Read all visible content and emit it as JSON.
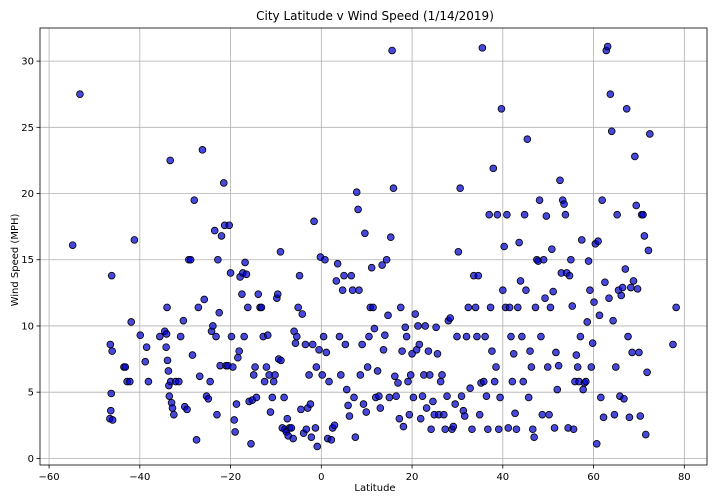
{
  "chart_data": {
    "type": "scatter",
    "title": "City Latitude v Wind Speed (1/14/2019)",
    "xlabel": "Latitude",
    "ylabel": "Wind Speed (MPH)",
    "xlim": [
      -62,
      85
    ],
    "ylim": [
      -0.5,
      32.5
    ],
    "xticks": [
      -60,
      -40,
      -20,
      0,
      20,
      40,
      60,
      80
    ],
    "yticks": [
      0,
      5,
      10,
      15,
      20,
      25,
      30
    ],
    "grid": true,
    "marker_color": "#0000cc",
    "marker_edge": "#000000",
    "points": [
      [
        -54.8,
        16.1
      ],
      [
        -53.2,
        27.5
      ],
      [
        -46.2,
        13.8
      ],
      [
        -46.5,
        8.6
      ],
      [
        -46.1,
        8.1
      ],
      [
        -46.3,
        4.9
      ],
      [
        -46.4,
        3.6
      ],
      [
        -46.6,
        3.0
      ],
      [
        -46.0,
        2.9
      ],
      [
        -43.5,
        6.9
      ],
      [
        -43.2,
        6.9
      ],
      [
        -42.8,
        5.8
      ],
      [
        -42.2,
        5.8
      ],
      [
        -41.9,
        10.3
      ],
      [
        -41.2,
        16.5
      ],
      [
        -39.9,
        9.3
      ],
      [
        -38.8,
        7.3
      ],
      [
        -38.5,
        8.4
      ],
      [
        -38.1,
        5.8
      ],
      [
        -35.6,
        9.2
      ],
      [
        -34.5,
        9.6
      ],
      [
        -34.1,
        9.4
      ],
      [
        -34.0,
        11.4
      ],
      [
        -34.2,
        8.4
      ],
      [
        -33.9,
        7.4
      ],
      [
        -33.7,
        6.6
      ],
      [
        -33.5,
        4.7
      ],
      [
        -33.6,
        5.5
      ],
      [
        -33.2,
        5.8
      ],
      [
        -33.0,
        4.2
      ],
      [
        -32.8,
        3.8
      ],
      [
        -32.5,
        3.3
      ],
      [
        -33.3,
        22.5
      ],
      [
        -32.1,
        5.8
      ],
      [
        -31.4,
        5.8
      ],
      [
        -31.0,
        9.2
      ],
      [
        -30.4,
        10.4
      ],
      [
        -30.1,
        3.9
      ],
      [
        -29.6,
        3.7
      ],
      [
        -29.2,
        15.0
      ],
      [
        -28.8,
        15.0
      ],
      [
        -28.4,
        7.8
      ],
      [
        -28.0,
        19.5
      ],
      [
        -27.5,
        1.4
      ],
      [
        -27.1,
        11.4
      ],
      [
        -26.8,
        6.2
      ],
      [
        -26.2,
        23.3
      ],
      [
        -25.8,
        12.0
      ],
      [
        -25.3,
        4.7
      ],
      [
        -24.9,
        4.5
      ],
      [
        -24.5,
        5.8
      ],
      [
        -24.2,
        9.6
      ],
      [
        -23.9,
        10.0
      ],
      [
        -23.5,
        17.2
      ],
      [
        -23.2,
        9.2
      ],
      [
        -23.0,
        3.3
      ],
      [
        -22.8,
        15.0
      ],
      [
        -22.5,
        11.0
      ],
      [
        -22.3,
        7.0
      ],
      [
        -22.0,
        16.8
      ],
      [
        -21.5,
        20.8
      ],
      [
        -21.3,
        17.6
      ],
      [
        -21.0,
        7.0
      ],
      [
        -20.6,
        7.0
      ],
      [
        -20.3,
        17.6
      ],
      [
        -20.0,
        14.0
      ],
      [
        -19.8,
        9.2
      ],
      [
        -19.5,
        6.9
      ],
      [
        -19.2,
        2.9
      ],
      [
        -19.0,
        2.0
      ],
      [
        -18.7,
        4.1
      ],
      [
        -18.4,
        7.6
      ],
      [
        -18.1,
        8.1
      ],
      [
        -17.9,
        13.7
      ],
      [
        -17.5,
        12.4
      ],
      [
        -17.3,
        14.0
      ],
      [
        -17.0,
        9.2
      ],
      [
        -16.8,
        14.8
      ],
      [
        -16.5,
        13.9
      ],
      [
        -16.2,
        11.4
      ],
      [
        -15.9,
        4.3
      ],
      [
        -15.5,
        1.1
      ],
      [
        -15.2,
        4.4
      ],
      [
        -14.9,
        6.3
      ],
      [
        -14.6,
        6.9
      ],
      [
        -14.3,
        4.6
      ],
      [
        -13.9,
        12.4
      ],
      [
        -13.5,
        11.4
      ],
      [
        -13.2,
        11.4
      ],
      [
        -12.8,
        9.2
      ],
      [
        -12.5,
        5.8
      ],
      [
        -12.1,
        6.9
      ],
      [
        -11.8,
        9.3
      ],
      [
        -11.5,
        6.3
      ],
      [
        -11.2,
        3.5
      ],
      [
        -10.8,
        4.6
      ],
      [
        -10.5,
        5.8
      ],
      [
        -10.2,
        6.3
      ],
      [
        -9.8,
        12.1
      ],
      [
        -9.6,
        12.4
      ],
      [
        -9.4,
        7.5
      ],
      [
        -9.0,
        15.6
      ],
      [
        -8.9,
        7.4
      ],
      [
        -8.6,
        2.3
      ],
      [
        -8.2,
        4.6
      ],
      [
        -8.0,
        2.2
      ],
      [
        -7.7,
        2.0
      ],
      [
        -7.5,
        3.0
      ],
      [
        -7.3,
        1.7
      ],
      [
        -7.0,
        2.3
      ],
      [
        -6.6,
        2.3
      ],
      [
        -6.2,
        1.5
      ],
      [
        -6.0,
        9.6
      ],
      [
        -5.7,
        8.7
      ],
      [
        -5.4,
        9.2
      ],
      [
        -5.1,
        11.4
      ],
      [
        -4.8,
        13.8
      ],
      [
        -4.5,
        3.7
      ],
      [
        -4.2,
        10.9
      ],
      [
        -3.9,
        1.9
      ],
      [
        -3.5,
        8.6
      ],
      [
        -3.3,
        2.2
      ],
      [
        -3.0,
        3.8
      ],
      [
        -2.7,
        6.3
      ],
      [
        -2.4,
        4.1
      ],
      [
        -2.2,
        1.6
      ],
      [
        -1.9,
        8.6
      ],
      [
        -1.6,
        17.9
      ],
      [
        -1.3,
        2.3
      ],
      [
        -1.1,
        6.9
      ],
      [
        -0.9,
        0.9
      ],
      [
        -0.5,
        8.2
      ],
      [
        -0.2,
        15.2
      ],
      [
        0.2,
        6.3
      ],
      [
        0.5,
        9.2
      ],
      [
        0.8,
        15.0
      ],
      [
        1.1,
        8.0
      ],
      [
        1.4,
        1.5
      ],
      [
        1.7,
        5.8
      ],
      [
        2.2,
        1.4
      ],
      [
        2.5,
        2.3
      ],
      [
        2.9,
        2.5
      ],
      [
        3.3,
        13.4
      ],
      [
        3.6,
        14.7
      ],
      [
        4.0,
        9.2
      ],
      [
        4.3,
        6.3
      ],
      [
        4.7,
        12.7
      ],
      [
        5.0,
        13.8
      ],
      [
        5.3,
        8.6
      ],
      [
        5.6,
        5.2
      ],
      [
        5.9,
        4.0
      ],
      [
        6.2,
        3.2
      ],
      [
        6.6,
        13.8
      ],
      [
        6.9,
        12.7
      ],
      [
        7.2,
        4.6
      ],
      [
        7.5,
        1.6
      ],
      [
        7.8,
        20.1
      ],
      [
        8.1,
        18.8
      ],
      [
        8.3,
        12.7
      ],
      [
        8.6,
        6.3
      ],
      [
        9.0,
        8.6
      ],
      [
        9.3,
        4.1
      ],
      [
        9.6,
        17.0
      ],
      [
        9.9,
        3.5
      ],
      [
        10.2,
        6.9
      ],
      [
        10.5,
        9.2
      ],
      [
        10.8,
        11.4
      ],
      [
        11.1,
        14.4
      ],
      [
        11.4,
        11.4
      ],
      [
        11.7,
        9.8
      ],
      [
        12.0,
        4.6
      ],
      [
        12.4,
        6.6
      ],
      [
        12.7,
        4.7
      ],
      [
        13.0,
        3.8
      ],
      [
        13.4,
        14.6
      ],
      [
        13.7,
        8.2
      ],
      [
        14.0,
        9.3
      ],
      [
        14.4,
        15.0
      ],
      [
        14.7,
        10.8
      ],
      [
        15.0,
        4.6
      ],
      [
        15.3,
        16.7
      ],
      [
        15.6,
        30.8
      ],
      [
        15.9,
        20.4
      ],
      [
        16.2,
        6.2
      ],
      [
        16.5,
        4.7
      ],
      [
        16.9,
        5.7
      ],
      [
        17.2,
        3.0
      ],
      [
        17.5,
        11.4
      ],
      [
        17.8,
        8.1
      ],
      [
        18.1,
        2.4
      ],
      [
        18.5,
        9.9
      ],
      [
        18.8,
        9.2
      ],
      [
        19.1,
        5.8
      ],
      [
        19.4,
        3.3
      ],
      [
        19.7,
        6.3
      ],
      [
        20.0,
        7.9
      ],
      [
        20.3,
        4.6
      ],
      [
        20.7,
        10.9
      ],
      [
        21.0,
        8.2
      ],
      [
        21.3,
        10.0
      ],
      [
        21.6,
        8.6
      ],
      [
        21.9,
        3.0
      ],
      [
        22.3,
        4.7
      ],
      [
        22.6,
        6.3
      ],
      [
        22.9,
        10.0
      ],
      [
        23.2,
        3.8
      ],
      [
        23.6,
        8.1
      ],
      [
        23.9,
        6.3
      ],
      [
        24.2,
        2.2
      ],
      [
        24.6,
        4.3
      ],
      [
        24.9,
        3.3
      ],
      [
        25.3,
        9.9
      ],
      [
        25.6,
        7.9
      ],
      [
        25.9,
        3.3
      ],
      [
        26.3,
        5.8
      ],
      [
        26.6,
        6.3
      ],
      [
        27.0,
        3.3
      ],
      [
        27.3,
        2.2
      ],
      [
        27.7,
        4.7
      ],
      [
        28.0,
        10.4
      ],
      [
        28.4,
        10.6
      ],
      [
        28.8,
        2.2
      ],
      [
        29.1,
        2.4
      ],
      [
        29.5,
        4.1
      ],
      [
        29.9,
        9.2
      ],
      [
        30.2,
        15.6
      ],
      [
        30.6,
        20.4
      ],
      [
        30.9,
        4.7
      ],
      [
        31.3,
        3.6
      ],
      [
        31.6,
        3.2
      ],
      [
        32.0,
        9.2
      ],
      [
        32.4,
        11.4
      ],
      [
        32.8,
        5.3
      ],
      [
        33.2,
        2.2
      ],
      [
        33.6,
        13.8
      ],
      [
        34.0,
        11.4
      ],
      [
        34.3,
        9.2
      ],
      [
        34.6,
        13.8
      ],
      [
        34.9,
        3.3
      ],
      [
        35.2,
        5.7
      ],
      [
        35.5,
        31.0
      ],
      [
        35.8,
        5.8
      ],
      [
        36.1,
        9.2
      ],
      [
        36.4,
        4.7
      ],
      [
        36.7,
        2.2
      ],
      [
        37.0,
        18.4
      ],
      [
        37.3,
        11.4
      ],
      [
        37.6,
        8.1
      ],
      [
        37.9,
        21.9
      ],
      [
        38.2,
        5.8
      ],
      [
        38.5,
        6.9
      ],
      [
        38.8,
        18.4
      ],
      [
        39.1,
        2.2
      ],
      [
        39.4,
        4.6
      ],
      [
        39.7,
        26.4
      ],
      [
        40.0,
        12.7
      ],
      [
        40.3,
        16.0
      ],
      [
        40.6,
        11.4
      ],
      [
        40.9,
        18.4
      ],
      [
        41.2,
        2.3
      ],
      [
        41.5,
        11.4
      ],
      [
        41.8,
        9.2
      ],
      [
        42.1,
        5.8
      ],
      [
        42.4,
        7.9
      ],
      [
        42.7,
        3.4
      ],
      [
        43.0,
        2.2
      ],
      [
        43.3,
        11.4
      ],
      [
        43.6,
        16.3
      ],
      [
        43.9,
        13.4
      ],
      [
        44.2,
        9.2
      ],
      [
        44.5,
        5.8
      ],
      [
        44.8,
        18.4
      ],
      [
        45.1,
        12.7
      ],
      [
        45.4,
        24.1
      ],
      [
        45.7,
        4.6
      ],
      [
        46.0,
        8.1
      ],
      [
        46.3,
        6.9
      ],
      [
        46.6,
        2.2
      ],
      [
        46.9,
        1.6
      ],
      [
        47.2,
        11.4
      ],
      [
        47.5,
        15.0
      ],
      [
        47.8,
        14.9
      ],
      [
        48.1,
        19.5
      ],
      [
        48.4,
        9.2
      ],
      [
        48.7,
        3.3
      ],
      [
        49.0,
        15.0
      ],
      [
        49.3,
        12.1
      ],
      [
        49.6,
        18.3
      ],
      [
        49.9,
        6.9
      ],
      [
        50.2,
        3.3
      ],
      [
        50.5,
        11.4
      ],
      [
        50.8,
        15.8
      ],
      [
        51.1,
        12.6
      ],
      [
        51.4,
        2.3
      ],
      [
        51.7,
        8.0
      ],
      [
        52.0,
        5.2
      ],
      [
        52.3,
        7.0
      ],
      [
        52.6,
        21.0
      ],
      [
        52.9,
        14.0
      ],
      [
        53.2,
        19.5
      ],
      [
        53.5,
        19.2
      ],
      [
        53.8,
        18.4
      ],
      [
        54.1,
        14.0
      ],
      [
        54.4,
        2.3
      ],
      [
        54.7,
        13.8
      ],
      [
        55.0,
        15.0
      ],
      [
        55.3,
        11.5
      ],
      [
        55.6,
        2.2
      ],
      [
        55.9,
        5.8
      ],
      [
        56.2,
        7.8
      ],
      [
        56.5,
        6.9
      ],
      [
        56.8,
        5.8
      ],
      [
        57.1,
        9.2
      ],
      [
        57.4,
        16.5
      ],
      [
        57.7,
        5.2
      ],
      [
        58.0,
        5.7
      ],
      [
        58.3,
        5.8
      ],
      [
        58.6,
        10.3
      ],
      [
        58.9,
        14.9
      ],
      [
        59.2,
        12.7
      ],
      [
        59.5,
        6.9
      ],
      [
        59.8,
        8.7
      ],
      [
        60.1,
        11.8
      ],
      [
        60.4,
        16.2
      ],
      [
        60.7,
        1.1
      ],
      [
        61.0,
        16.4
      ],
      [
        61.3,
        10.8
      ],
      [
        61.6,
        4.6
      ],
      [
        61.9,
        19.5
      ],
      [
        62.2,
        3.1
      ],
      [
        62.5,
        13.3
      ],
      [
        62.8,
        30.8
      ],
      [
        63.1,
        31.1
      ],
      [
        63.4,
        12.1
      ],
      [
        63.7,
        27.5
      ],
      [
        64.0,
        24.7
      ],
      [
        64.3,
        10.4
      ],
      [
        64.6,
        3.3
      ],
      [
        64.9,
        6.9
      ],
      [
        65.2,
        18.4
      ],
      [
        65.5,
        12.7
      ],
      [
        65.8,
        4.7
      ],
      [
        66.1,
        12.3
      ],
      [
        66.4,
        12.9
      ],
      [
        66.7,
        4.5
      ],
      [
        67.0,
        14.3
      ],
      [
        67.3,
        26.4
      ],
      [
        67.6,
        9.2
      ],
      [
        67.9,
        3.1
      ],
      [
        68.2,
        12.9
      ],
      [
        68.5,
        8.0
      ],
      [
        68.8,
        13.4
      ],
      [
        69.1,
        22.8
      ],
      [
        69.4,
        19.1
      ],
      [
        69.7,
        12.8
      ],
      [
        70.0,
        8.0
      ],
      [
        70.3,
        3.2
      ],
      [
        70.6,
        18.4
      ],
      [
        70.9,
        18.4
      ],
      [
        71.2,
        16.8
      ],
      [
        71.5,
        1.8
      ],
      [
        71.8,
        6.5
      ],
      [
        72.1,
        15.7
      ],
      [
        72.4,
        24.5
      ],
      [
        77.5,
        8.6
      ],
      [
        78.2,
        11.4
      ]
    ]
  }
}
